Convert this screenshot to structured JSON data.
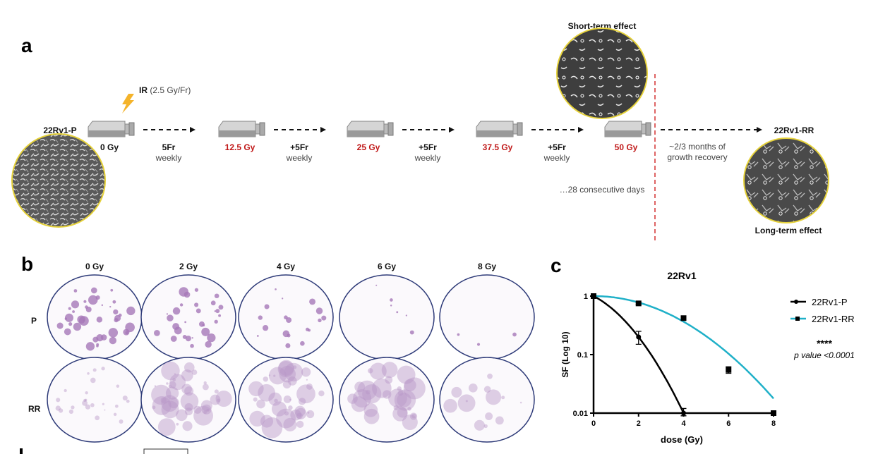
{
  "panels": {
    "a": "a",
    "b": "b",
    "c": "c"
  },
  "timeline": {
    "start_label": "22Rv1-P",
    "ir_bold": "IR",
    "ir_rest": "(2.5 Gy/Fr)",
    "doses": [
      "0 Gy",
      "12.5 Gy",
      "25 Gy",
      "37.5 Gy",
      "50 Gy"
    ],
    "steps": [
      {
        "bold": "5Fr",
        "sub": "weekly"
      },
      {
        "bold": "+5Fr",
        "sub": "weekly"
      },
      {
        "bold": "+5Fr",
        "sub": "weekly"
      },
      {
        "bold": "+5Fr",
        "sub": "weekly"
      }
    ],
    "short_term": "Short-term effect",
    "consecutive": "…28 consecutive days",
    "recovery_line1": "~2/3 months of",
    "recovery_line2": "growth recovery",
    "end_label": "22Rv1-RR",
    "long_term": "Long-term effect",
    "dose_color": "#c01818",
    "divider_color": "#d43030"
  },
  "plates": {
    "columns": [
      "0 Gy",
      "2 Gy",
      "4 Gy",
      "6 Gy",
      "8 Gy"
    ],
    "rows": [
      "P",
      "RR"
    ]
  },
  "chart_data": {
    "type": "scatter",
    "title": "22Rv1",
    "xlabel": "dose (Gy)",
    "ylabel": "SF (Log  10)",
    "xlim": [
      0,
      8
    ],
    "ylim": [
      0.01,
      1
    ],
    "yscale": "log",
    "xticks": [
      "0",
      "2",
      "4",
      "6",
      "8"
    ],
    "yticks": [
      "1",
      "0.1",
      "0.01"
    ],
    "series": [
      {
        "name": "22Rv1-P",
        "color": "#000000",
        "marker": "circle",
        "x": [
          0,
          2,
          4
        ],
        "y": [
          1,
          0.2,
          0.01
        ],
        "err_low": [
          1,
          0.15,
          0.009
        ],
        "err_high": [
          1,
          0.25,
          0.012
        ],
        "fit": {
          "model": "linear-quadratic",
          "alpha": 0.46,
          "beta": 0.1725
        }
      },
      {
        "name": "22Rv1-RR",
        "color": "#1fb0c8",
        "marker": "square",
        "x": [
          0,
          2,
          4,
          6,
          8
        ],
        "y": [
          1,
          0.75,
          0.42,
          0.055,
          0.01
        ],
        "err_low": [
          1,
          0.72,
          0.4,
          0.048,
          0.01
        ],
        "err_high": [
          1,
          0.78,
          0.44,
          0.062,
          0.01
        ],
        "fit": {
          "model": "linear-quadratic",
          "alpha": 0.0,
          "beta": 0.063
        }
      }
    ],
    "legend_position": "right",
    "significance": "****",
    "p_value": "p value <0.0001"
  }
}
